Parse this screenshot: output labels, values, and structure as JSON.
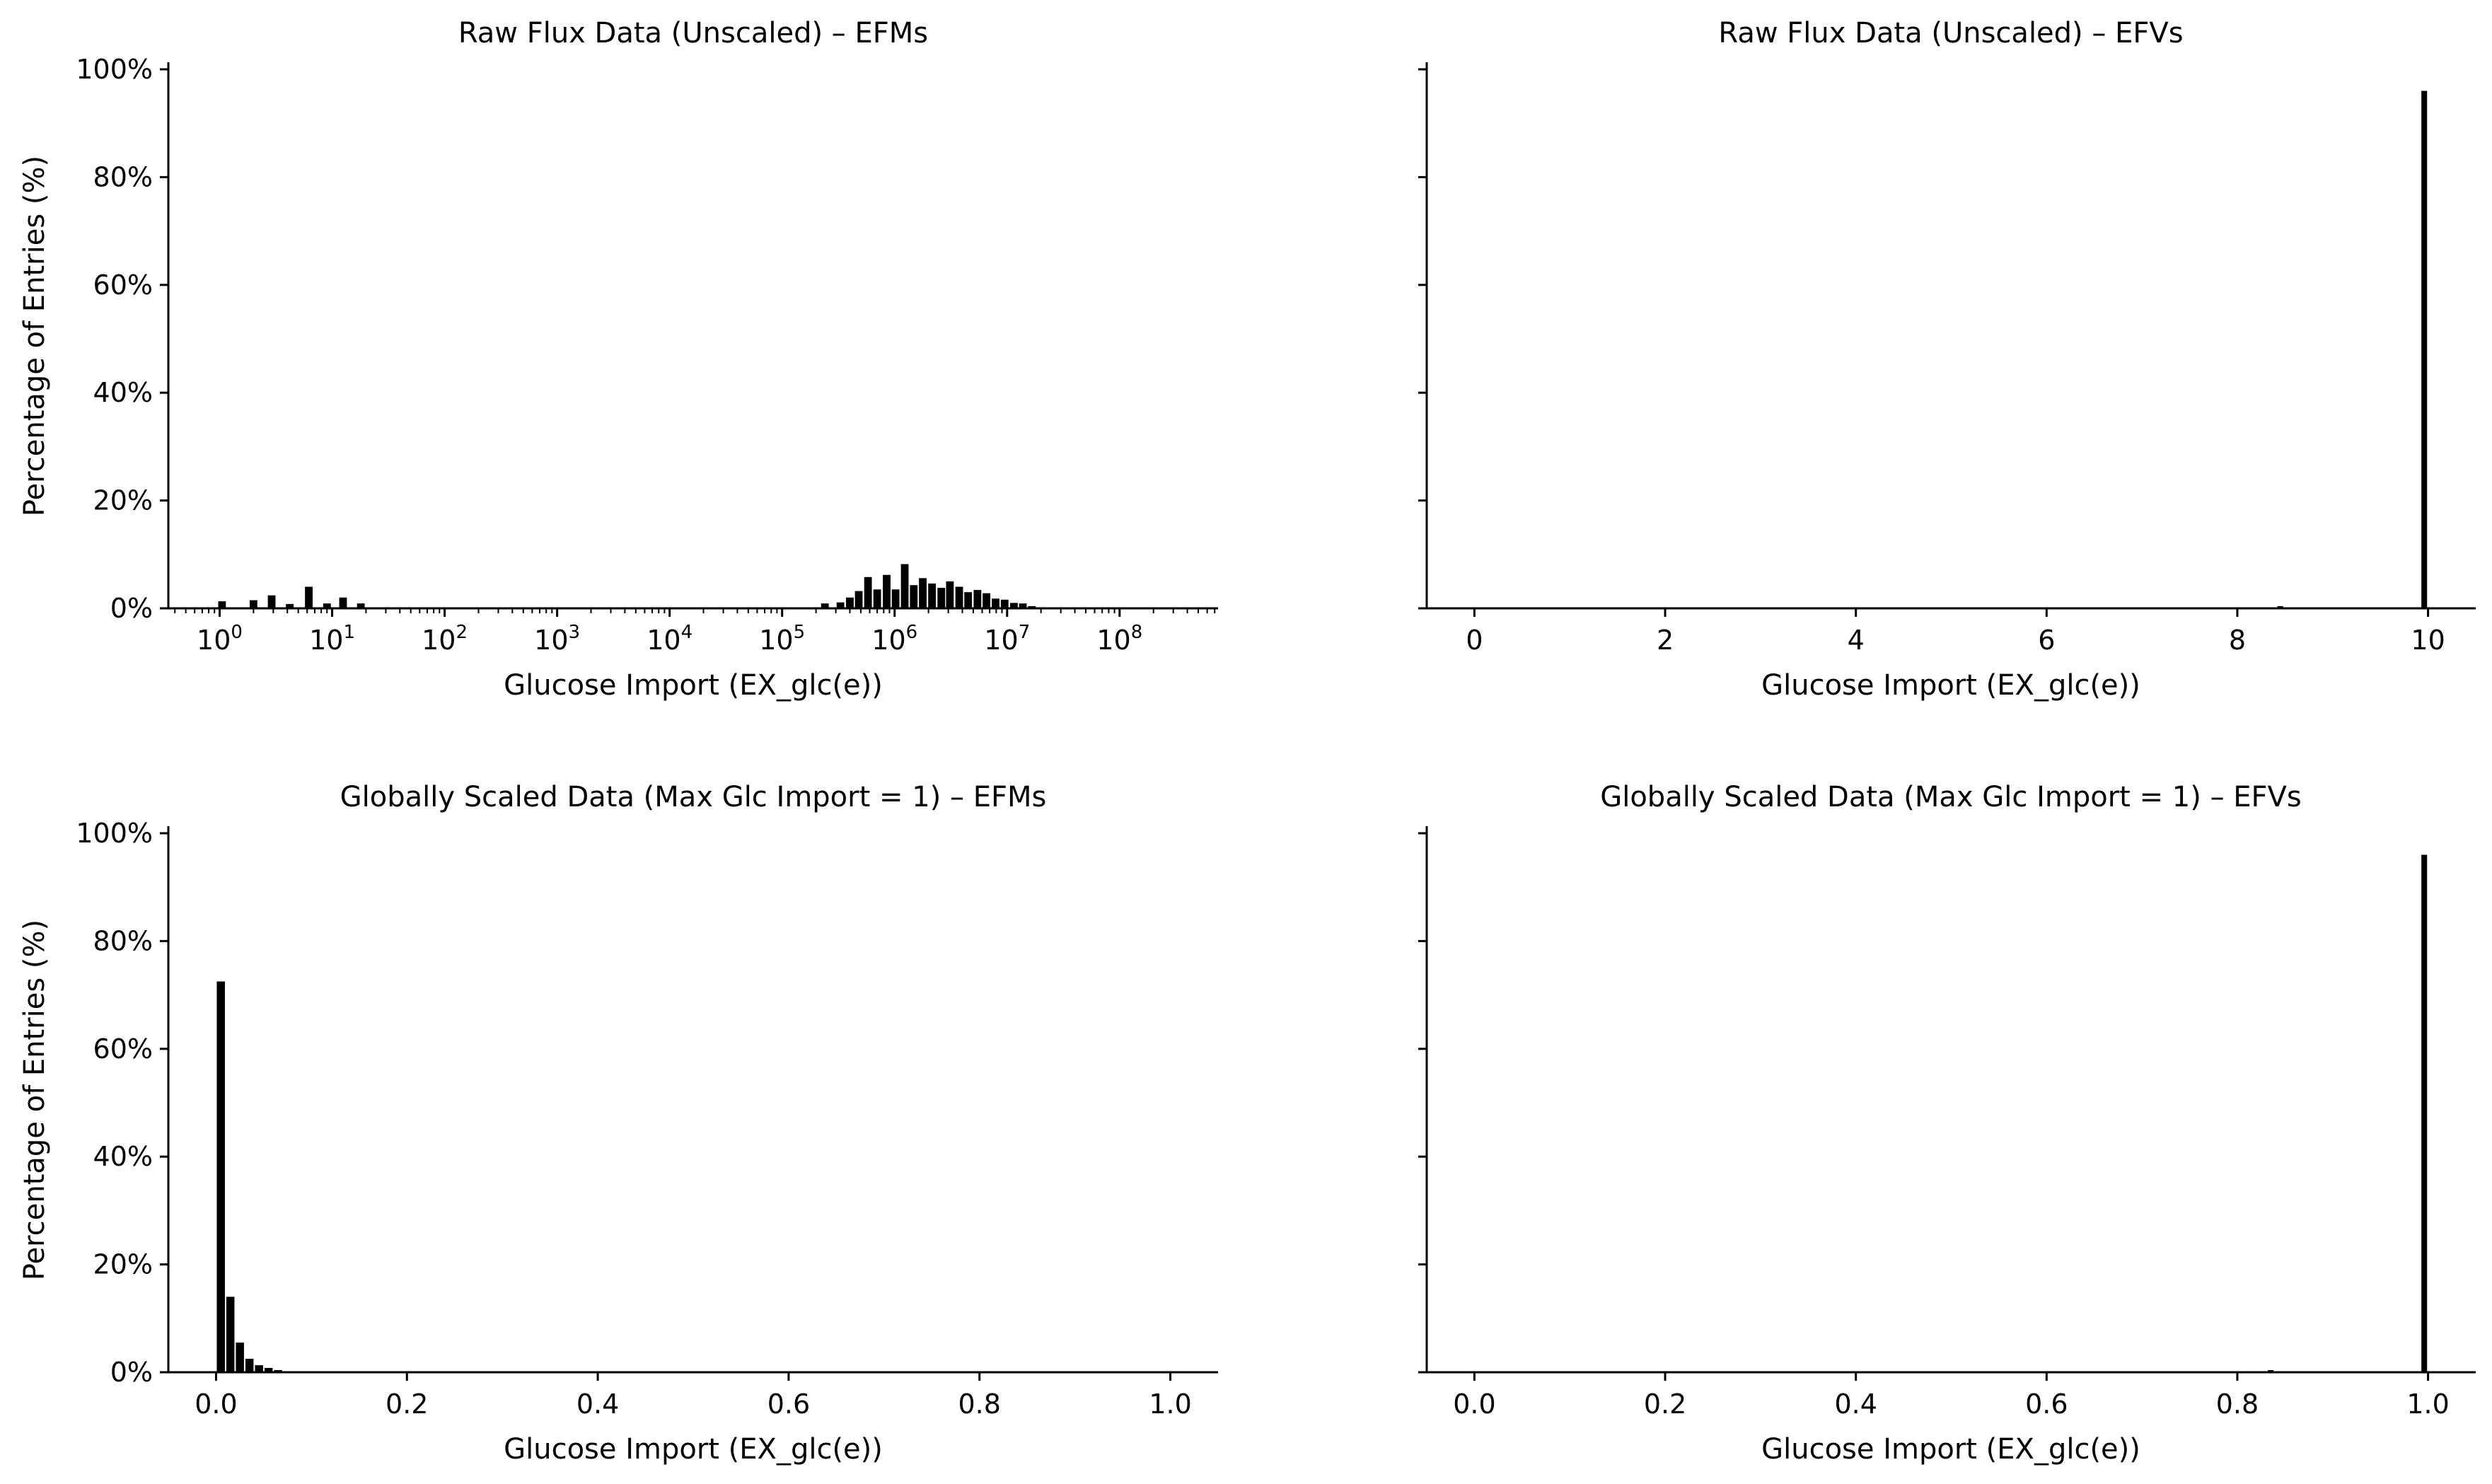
{
  "chart_data": [
    {
      "type": "bar",
      "panel": "top-left",
      "title": "Raw Flux Data (Unscaled) – EFMs",
      "xlabel": "Glucose Import (EX_glc(e))",
      "ylabel": "Percentage of Entries (%)",
      "xscale": "log",
      "xlim": [
        0.35,
        750000000.0
      ],
      "ylim": [
        0,
        100
      ],
      "grid": false,
      "x_ticks": [
        {
          "base": "10",
          "exp": "0",
          "value": 1
        },
        {
          "base": "10",
          "exp": "1",
          "value": 10
        },
        {
          "base": "10",
          "exp": "2",
          "value": 100
        },
        {
          "base": "10",
          "exp": "3",
          "value": 1000
        },
        {
          "base": "10",
          "exp": "4",
          "value": 10000
        },
        {
          "base": "10",
          "exp": "5",
          "value": 100000
        },
        {
          "base": "10",
          "exp": "6",
          "value": 1000000
        },
        {
          "base": "10",
          "exp": "7",
          "value": 10000000
        },
        {
          "base": "10",
          "exp": "8",
          "value": 100000000
        }
      ],
      "y_ticks": [
        "0%",
        "20%",
        "40%",
        "60%",
        "80%",
        "100%"
      ],
      "bars": [
        {
          "x": 1.05,
          "y": 1.3
        },
        {
          "x": 2.0,
          "y": 1.5
        },
        {
          "x": 2.9,
          "y": 2.4
        },
        {
          "x": 4.2,
          "y": 0.8
        },
        {
          "x": 6.2,
          "y": 4.0
        },
        {
          "x": 9.0,
          "y": 0.9
        },
        {
          "x": 12.5,
          "y": 2.0
        },
        {
          "x": 18.0,
          "y": 0.9
        },
        {
          "x": 240000,
          "y": 0.9
        },
        {
          "x": 330000,
          "y": 1.1
        },
        {
          "x": 400000,
          "y": 2.0
        },
        {
          "x": 480000,
          "y": 3.2
        },
        {
          "x": 580000,
          "y": 5.8
        },
        {
          "x": 700000,
          "y": 3.5
        },
        {
          "x": 850000,
          "y": 6.2
        },
        {
          "x": 1020000,
          "y": 3.5
        },
        {
          "x": 1230000,
          "y": 8.2
        },
        {
          "x": 1480000,
          "y": 4.3
        },
        {
          "x": 1780000,
          "y": 5.6
        },
        {
          "x": 2150000,
          "y": 4.6
        },
        {
          "x": 2600000,
          "y": 3.8
        },
        {
          "x": 3100000,
          "y": 5.0
        },
        {
          "x": 3750000,
          "y": 4.0
        },
        {
          "x": 4500000,
          "y": 3.0
        },
        {
          "x": 5450000,
          "y": 3.4
        },
        {
          "x": 6550000,
          "y": 2.8
        },
        {
          "x": 7900000,
          "y": 1.8
        },
        {
          "x": 9500000,
          "y": 1.6
        },
        {
          "x": 11500000,
          "y": 1.0
        },
        {
          "x": 13800000,
          "y": 0.9
        },
        {
          "x": 16600000,
          "y": 0.4
        },
        {
          "x": 20000000,
          "y": 0.2
        }
      ]
    },
    {
      "type": "bar",
      "panel": "top-right",
      "title": "Raw Flux Data (Unscaled) – EFVs",
      "xlabel": "Glucose Import (EX_glc(e))",
      "xscale": "linear",
      "xlim": [
        -0.5,
        10.5
      ],
      "ylim": [
        0,
        100
      ],
      "grid": false,
      "x_ticks": [
        "0",
        "2",
        "4",
        "6",
        "8",
        "10"
      ],
      "x_tick_values": [
        0,
        2,
        4,
        6,
        8,
        10
      ],
      "bar_width": 0.06,
      "bars": [
        {
          "x": 8.45,
          "y": 0.4
        },
        {
          "x": 9.96,
          "y": 96
        }
      ]
    },
    {
      "type": "bar",
      "panel": "bottom-left",
      "title": "Globally Scaled Data (Max Glc Import = 1) – EFMs",
      "xlabel": "Glucose Import (EX_glc(e))",
      "ylabel": "Percentage of Entries (%)",
      "xscale": "linear",
      "xlim": [
        -0.05,
        1.05
      ],
      "ylim": [
        0,
        100
      ],
      "grid": false,
      "x_ticks": [
        "0.0",
        "0.2",
        "0.4",
        "0.6",
        "0.8",
        "1.0"
      ],
      "x_tick_values": [
        0,
        0.2,
        0.4,
        0.6,
        0.8,
        1.0
      ],
      "y_ticks": [
        "0%",
        "20%",
        "40%",
        "60%",
        "80%",
        "100%"
      ],
      "bar_width": 0.0085,
      "bars": [
        {
          "x": 0.005,
          "y": 72.5
        },
        {
          "x": 0.015,
          "y": 14.0
        },
        {
          "x": 0.025,
          "y": 5.5
        },
        {
          "x": 0.035,
          "y": 2.5
        },
        {
          "x": 0.045,
          "y": 1.3
        },
        {
          "x": 0.055,
          "y": 0.8
        },
        {
          "x": 0.065,
          "y": 0.4
        }
      ]
    },
    {
      "type": "bar",
      "panel": "bottom-right",
      "title": "Globally Scaled Data (Max Glc Import = 1) – EFVs",
      "xlabel": "Glucose Import (EX_glc(e))",
      "xscale": "linear",
      "xlim": [
        -0.05,
        1.05
      ],
      "ylim": [
        0,
        100
      ],
      "grid": false,
      "x_ticks": [
        "0.0",
        "0.2",
        "0.4",
        "0.6",
        "0.8",
        "1.0"
      ],
      "x_tick_values": [
        0,
        0.2,
        0.4,
        0.6,
        0.8,
        1.0
      ],
      "bar_width": 0.006,
      "bars": [
        {
          "x": 0.835,
          "y": 0.4
        },
        {
          "x": 0.996,
          "y": 96
        }
      ]
    }
  ]
}
